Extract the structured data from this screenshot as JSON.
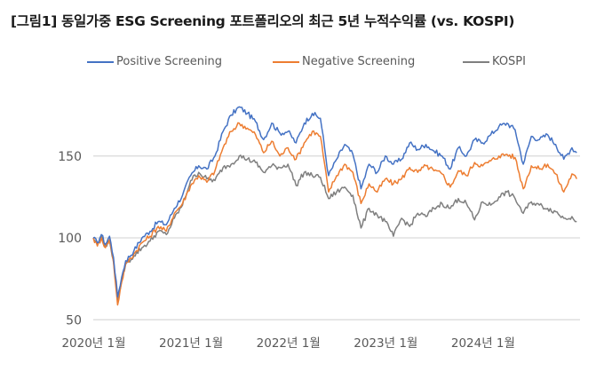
{
  "chart_data": {
    "type": "line",
    "title": "[그림1] 동일가중 ESG Screening 포트폴리오의 최근 5년 누적수익률 (vs. KOSPI)",
    "xlabel": "",
    "ylabel": "",
    "ylim": [
      50,
      185
    ],
    "yticks": [
      {
        "value": 50,
        "label": "50"
      },
      {
        "value": 100,
        "label": "100"
      },
      {
        "value": 150,
        "label": "150"
      }
    ],
    "grid": true,
    "legend_position": "top-center",
    "x_start": "2020-01",
    "x_end": "2024-12",
    "xticks": [
      {
        "value": 0,
        "label": "2020년 1월"
      },
      {
        "value": 12,
        "label": "2021년 1월"
      },
      {
        "value": 24,
        "label": "2022년 1월"
      },
      {
        "value": 36,
        "label": "2023년 1월"
      },
      {
        "value": 48,
        "label": "2024년 1월"
      }
    ],
    "x": [
      0,
      0.5,
      1,
      1.5,
      2,
      2.5,
      3,
      3.5,
      4,
      5,
      6,
      7,
      8,
      9,
      10,
      11,
      12,
      13,
      14,
      15,
      16,
      17,
      18,
      19,
      20,
      21,
      22,
      23,
      24,
      25,
      26,
      27,
      28,
      29,
      30,
      31,
      32,
      33,
      34,
      35,
      36,
      37,
      38,
      39,
      40,
      41,
      42,
      43,
      44,
      45,
      46,
      47,
      48,
      49,
      50,
      51,
      52,
      53,
      54,
      55,
      56,
      57,
      58,
      59,
      59.6
    ],
    "series": [
      {
        "name": "Positive Screening",
        "color": "#4472c4",
        "values": [
          100,
          97,
          102,
          96,
          101,
          88,
          64,
          76,
          86,
          92,
          100,
          104,
          110,
          108,
          118,
          126,
          138,
          144,
          142,
          150,
          165,
          175,
          180,
          176,
          171,
          160,
          170,
          164,
          165,
          158,
          170,
          176,
          173,
          138,
          148,
          157,
          151,
          130,
          145,
          140,
          150,
          145,
          148,
          158,
          154,
          157,
          153,
          150,
          142,
          155,
          150,
          160,
          158,
          163,
          168,
          170,
          166,
          145,
          162,
          160,
          163,
          157,
          148,
          155,
          152
        ],
        "notes": "approximate, read from chart"
      },
      {
        "name": "Negative Screening",
        "color": "#ed7d31",
        "values": [
          100,
          95,
          100,
          94,
          99,
          85,
          59,
          73,
          84,
          90,
          97,
          101,
          107,
          104,
          115,
          121,
          132,
          138,
          134,
          141,
          155,
          165,
          170,
          167,
          163,
          152,
          159,
          150,
          155,
          148,
          158,
          165,
          162,
          128,
          138,
          145,
          140,
          121,
          133,
          128,
          136,
          133,
          136,
          143,
          140,
          144,
          141,
          139,
          131,
          141,
          138,
          146,
          144,
          147,
          150,
          151,
          149,
          130,
          144,
          142,
          145,
          139,
          128,
          139,
          136
        ],
        "notes": "approximate, read from chart"
      },
      {
        "name": "KOSPI",
        "color": "#7f7f7f",
        "values": [
          100,
          96,
          101,
          95,
          98,
          86,
          62,
          74,
          84,
          89,
          94,
          98,
          104,
          102,
          112,
          120,
          135,
          140,
          136,
          135,
          143,
          145,
          150,
          148,
          146,
          140,
          144,
          143,
          145,
          132,
          140,
          138,
          137,
          124,
          128,
          131,
          126,
          106,
          118,
          114,
          110,
          101,
          112,
          107,
          115,
          113,
          118,
          121,
          118,
          124,
          121,
          111,
          122,
          120,
          125,
          128,
          124,
          115,
          122,
          120,
          118,
          116,
          112,
          113,
          110
        ],
        "notes": "approximate, read from chart"
      }
    ]
  }
}
